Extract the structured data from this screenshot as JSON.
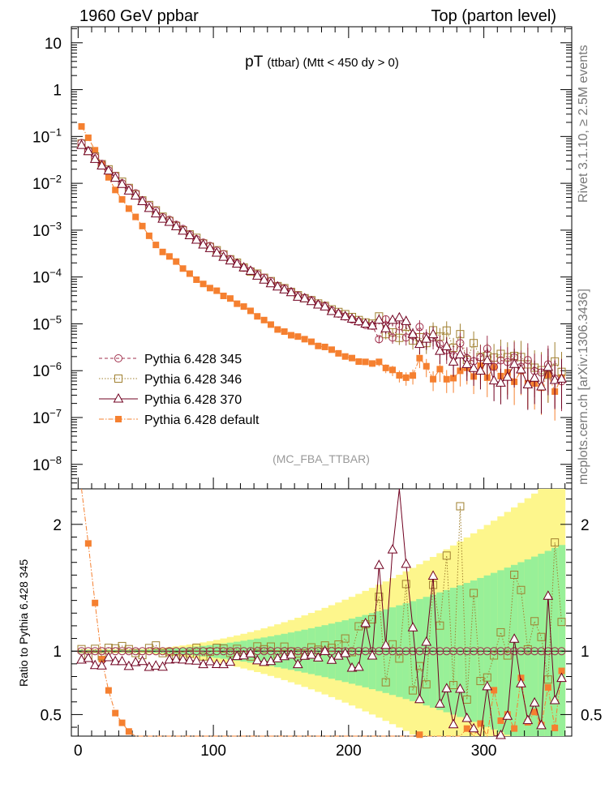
{
  "header": {
    "left": "1960 GeV ppbar",
    "right": "Top (parton level)"
  },
  "side_labels": {
    "rivet": "Rivet 3.1.10, ≥ 2.5M events",
    "mcplots": "mcplots.cern.ch [arXiv:1306.3436]"
  },
  "colors": {
    "p345": "#a0304c",
    "p346": "#a08030",
    "p370": "#700020",
    "default": "#f58030",
    "band_yellow": "#fdf68c",
    "band_green": "#98f098"
  },
  "chart_data": {
    "type": "scatter",
    "title_main": "pT",
    "title_sub": "(ttbar) (Mtt < 450 dy > 0)",
    "analysis": "(MC_FBA_TTBAR)",
    "x_ticks": [
      "0",
      "100",
      "200",
      "300"
    ],
    "x_range": [
      -5,
      365
    ],
    "upper": {
      "yscale": "log",
      "y_range": [
        3e-09,
        22
      ],
      "y_ticks": [
        {
          "exp": 1,
          "label": "10"
        },
        {
          "exp": 0,
          "label": "1"
        },
        {
          "exp": -1,
          "label": "10",
          "sup": "−1"
        },
        {
          "exp": -2,
          "label": "10",
          "sup": "−2"
        },
        {
          "exp": -3,
          "label": "10",
          "sup": "−3"
        },
        {
          "exp": -4,
          "label": "10",
          "sup": "−4"
        },
        {
          "exp": -5,
          "label": "10",
          "sup": "−5"
        },
        {
          "exp": -6,
          "label": "10",
          "sup": "−6"
        },
        {
          "exp": -7,
          "label": "10",
          "sup": "−7"
        },
        {
          "exp": -8,
          "label": "10",
          "sup": "−8"
        }
      ]
    },
    "lower": {
      "ylabel": "Ratio to Pythia 6.428 345",
      "y_range": [
        0.33,
        2.28
      ],
      "y_ticks": [
        "0.5",
        "1",
        "2"
      ],
      "y_tick_values": [
        0.5,
        1,
        2
      ]
    },
    "legend": [
      {
        "key": "p345",
        "label": "Pythia 6.428 345",
        "marker": "circle",
        "line": "dashed"
      },
      {
        "key": "p346",
        "label": "Pythia 6.428 346",
        "marker": "square-open",
        "line": "dotted"
      },
      {
        "key": "p370",
        "label": "Pythia 6.428 370",
        "marker": "triangle",
        "line": "solid"
      },
      {
        "key": "default",
        "label": "Pythia 6.428 default",
        "marker": "square-filled",
        "line": "dashdot"
      }
    ],
    "series": [
      {
        "name": "Pythia 6.428 345",
        "key": "p345",
        "x": [
          2.5,
          30,
          60,
          90,
          120,
          150,
          180,
          210,
          240,
          270,
          300,
          330,
          360
        ],
        "y": [
          0.07,
          0.012,
          0.0022,
          0.0006,
          0.00018,
          6e-05,
          2.5e-05,
          1e-05,
          6e-06,
          4e-06,
          2.5e-06,
          1.2e-06,
          8e-07
        ]
      },
      {
        "name": "Pythia 6.428 346",
        "key": "p346",
        "x": [
          2.5,
          30,
          60,
          90,
          120,
          150,
          180,
          210,
          240,
          270,
          300,
          330,
          360
        ],
        "y": [
          0.07,
          0.012,
          0.0022,
          0.0006,
          0.00018,
          6e-05,
          2.5e-05,
          1.1e-05,
          8e-06,
          5e-06,
          2e-06,
          1.2e-06,
          9e-07
        ]
      },
      {
        "name": "Pythia 6.428 370",
        "key": "p370",
        "x": [
          2.5,
          30,
          60,
          90,
          120,
          150,
          180,
          210,
          240,
          270,
          300,
          330,
          360
        ],
        "y": [
          0.065,
          0.011,
          0.002,
          0.00055,
          0.00017,
          5.5e-05,
          2.4e-05,
          1e-05,
          8e-06,
          3e-06,
          1e-06,
          8e-07,
          6e-07
        ]
      },
      {
        "name": "Pythia 6.428 default",
        "key": "default",
        "x": [
          2.5,
          30,
          60,
          90,
          120,
          150,
          180,
          210,
          240,
          270,
          300,
          330,
          360
        ],
        "y": [
          0.17,
          0.0055,
          0.0004,
          8e-05,
          2.5e-05,
          7e-06,
          3.3e-06,
          1.5e-06,
          1.2e-06,
          1e-06,
          8e-07,
          7e-07,
          6e-07
        ]
      }
    ]
  }
}
